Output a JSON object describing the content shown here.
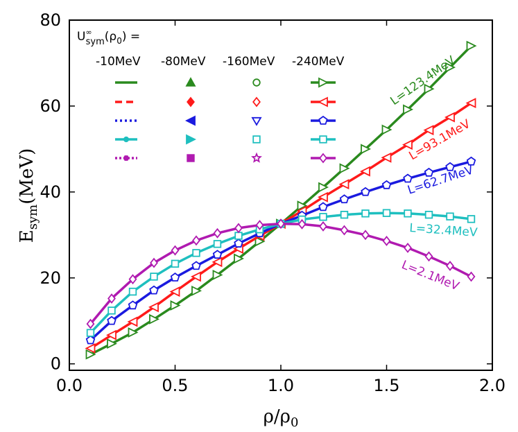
{
  "chart_data": {
    "type": "line",
    "xlabel": {
      "main": "ρ/ρ",
      "sub": "0"
    },
    "ylabel": {
      "main": "E",
      "sub": "sym",
      "suffix": "(MeV)"
    },
    "xlim": [
      0.0,
      2.0
    ],
    "ylim": [
      -1.5,
      80
    ],
    "xticks": [
      0.0,
      0.5,
      1.0,
      1.5,
      2.0
    ],
    "xtick_labels": [
      "0.0",
      "0.5",
      "1.0",
      "1.5",
      "2.0"
    ],
    "yticks": [
      0,
      20,
      40,
      60,
      80
    ],
    "ytick_labels": [
      "0",
      "20",
      "40",
      "60",
      "80"
    ],
    "x": [
      0.1,
      0.2,
      0.3,
      0.4,
      0.5,
      0.6,
      0.7,
      0.8,
      0.9,
      1.0,
      1.1,
      1.2,
      1.3,
      1.4,
      1.5,
      1.6,
      1.7,
      1.8,
      1.9
    ],
    "series": [
      {
        "name": "L=123.4MeV",
        "color": "#2a8a1e",
        "values": [
          2.2,
          4.7,
          7.3,
          10.4,
          13.6,
          17.0,
          20.7,
          24.5,
          28.5,
          32.6,
          36.8,
          41.1,
          45.5,
          50.0,
          54.5,
          59.2,
          64.0,
          69.0,
          74.0
        ]
      },
      {
        "name": "L=93.1MeV",
        "color": "#ff1a1a",
        "values": [
          3.6,
          6.7,
          9.8,
          13.2,
          16.8,
          20.3,
          23.7,
          26.8,
          29.8,
          32.6,
          35.6,
          38.8,
          41.8,
          44.8,
          48.0,
          51.0,
          54.4,
          57.4,
          60.7
        ]
      },
      {
        "name": "L=62.7MeV",
        "color": "#1a1adf",
        "values": [
          5.5,
          10.0,
          13.6,
          17.1,
          20.1,
          22.8,
          25.4,
          28.0,
          30.4,
          32.6,
          34.5,
          36.5,
          38.3,
          40.0,
          41.6,
          43.1,
          44.5,
          45.8,
          47.1
        ]
      },
      {
        "name": "L=32.4MeV",
        "color": "#1ebfbf",
        "values": [
          7.2,
          12.4,
          16.8,
          20.3,
          23.3,
          25.8,
          27.9,
          29.8,
          31.3,
          32.6,
          33.6,
          34.2,
          34.7,
          35.0,
          35.1,
          35.0,
          34.7,
          34.3,
          33.7
        ]
      },
      {
        "name": "L=2.1MeV",
        "color": "#b01ab0",
        "values": [
          9.3,
          15.2,
          19.7,
          23.5,
          26.4,
          28.7,
          30.4,
          31.6,
          32.3,
          32.6,
          32.5,
          32.0,
          31.1,
          30.0,
          28.6,
          27.0,
          25.0,
          22.8,
          20.3
        ]
      }
    ],
    "legend": {
      "title": "U^∞_sym(ρ_0) =",
      "title_parts": {
        "main": "U",
        "sup": "∞",
        "sub": "sym",
        "rest": "(ρ",
        "rest_sub": "0",
        "end": ") ="
      },
      "columns": [
        "-10MeV",
        "-80MeV",
        "-160MeV",
        "-240MeV"
      ],
      "placement": "top-left"
    }
  }
}
